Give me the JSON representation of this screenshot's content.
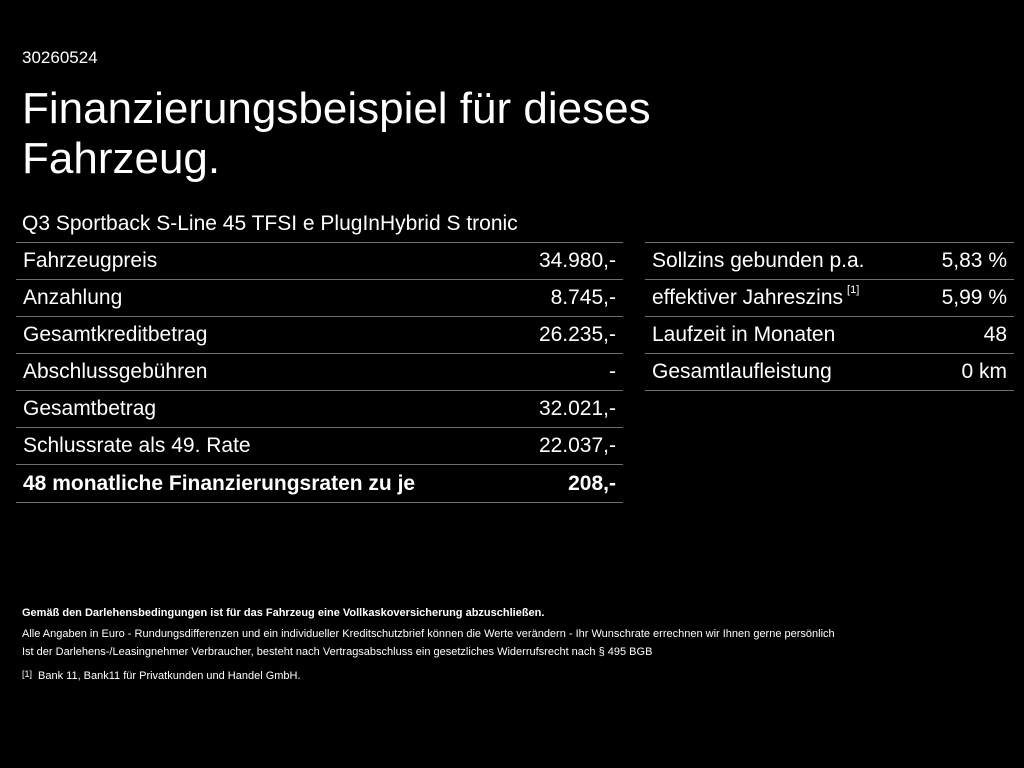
{
  "ref_number": "30260524",
  "title": "Finanzierungsbeispiel für dieses Fahrzeug.",
  "model": "Q3 Sportback S-Line 45 TFSI e PlugInHybrid S tronic",
  "left_rows": [
    {
      "label": "Fahrzeugpreis",
      "value": "34.980,-"
    },
    {
      "label": "Anzahlung",
      "value": "8.745,-"
    },
    {
      "label": "Gesamtkreditbetrag",
      "value": "26.235,-"
    },
    {
      "label": "Abschlussgebühren",
      "value": "-"
    },
    {
      "label": "Gesamtbetrag",
      "value": "32.021,-"
    },
    {
      "label": "Schlussrate als 49. Rate",
      "value": "22.037,-"
    },
    {
      "label": "48 monatliche Finanzierungsraten zu je",
      "value": "208,-"
    }
  ],
  "right_rows": [
    {
      "label": "Sollzins gebunden p.a.",
      "value": "5,83 %"
    },
    {
      "label": "effektiver Jahreszins",
      "footnote": "[1]",
      "value": "5,99 %"
    },
    {
      "label": "Laufzeit in Monaten",
      "value": "48"
    },
    {
      "label": "Gesamtlaufleistung",
      "value": "0 km"
    }
  ],
  "notes": {
    "insurance": "Gemäß den Darlehensbedingungen ist für das Fahrzeug eine Vollkaskoversicherung abzuschließen.",
    "euro": "Alle Angaben in Euro - Rundungsdifferenzen und ein individueller Kreditschutzbrief können die Werte verändern - Ihr Wunschrate errechnen wir Ihnen gerne persönlich",
    "withdrawal": "Ist der Darlehens-/Leasingnehmer Verbraucher, besteht nach Vertragsabschluss ein gesetzliches Widerrufsrecht nach § 495 BGB",
    "footnote_marker": "[1]",
    "footnote_text": "Bank 11, Bank11 für Privatkunden und Handel GmbH."
  },
  "colors": {
    "background": "#000000",
    "text": "#ffffff",
    "rule": "#6f6f6f"
  }
}
